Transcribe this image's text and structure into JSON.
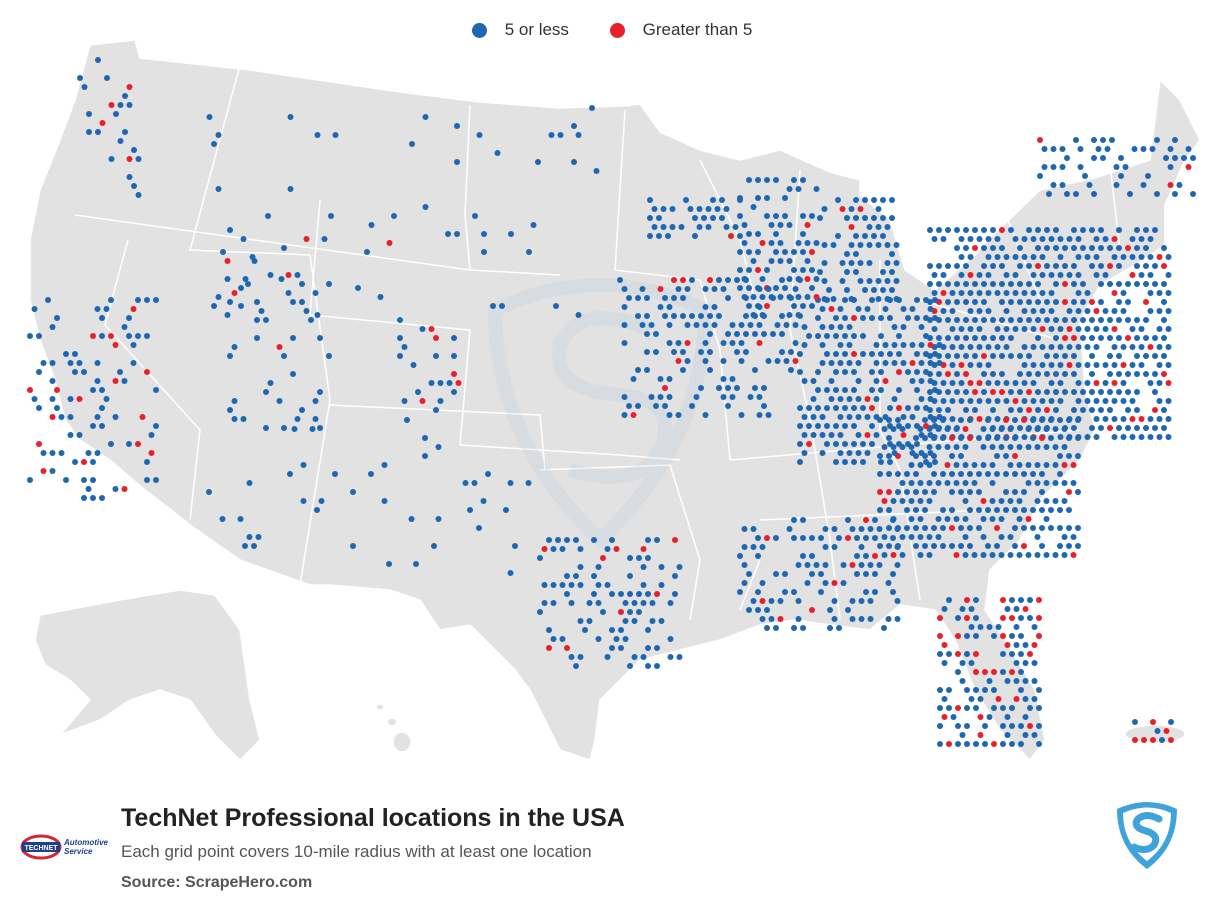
{
  "legend": {
    "low_label": "5 or less",
    "high_label": "Greater than 5",
    "low_color": "#1f67b1",
    "high_color": "#e8202e"
  },
  "title": "TechNet Professional locations in the USA",
  "subtitle": "Each grid point covers 10-mile radius with at least one location",
  "source": "Source: ScrapeHero.com",
  "brand": {
    "logo_line1": "Automotive",
    "logo_line2": "Service",
    "logo_mark": "TECHNET"
  },
  "map": {
    "land_color": "#e2e2e2",
    "border_color": "#ffffff",
    "watermark_icon": "scrapehero-shield-icon",
    "shield_icon": "scrapehero-logo-icon"
  }
}
